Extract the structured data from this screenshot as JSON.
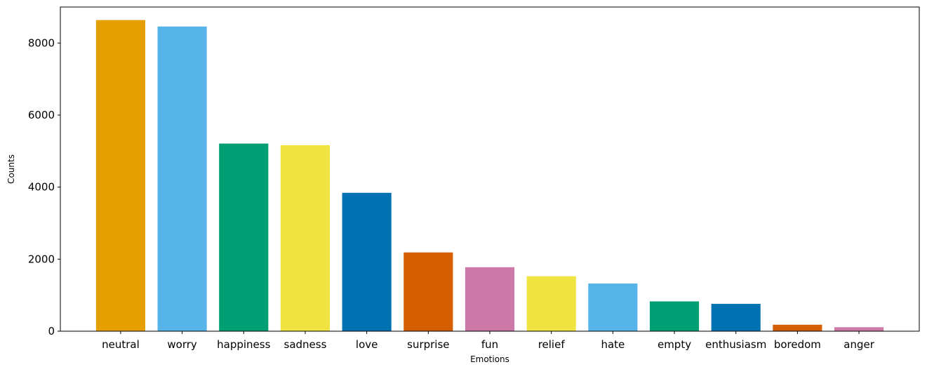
{
  "chart_data": {
    "type": "bar",
    "title": "",
    "xlabel": "Emotions",
    "ylabel": "Counts",
    "ylim": [
      0,
      9000
    ],
    "yticks": [
      0,
      2000,
      4000,
      6000,
      8000
    ],
    "grid": false,
    "legend": "none",
    "categories": [
      "neutral",
      "worry",
      "happiness",
      "sadness",
      "love",
      "surprise",
      "fun",
      "relief",
      "hate",
      "empty",
      "enthusiasm",
      "boredom",
      "anger"
    ],
    "values": [
      8638,
      8459,
      5209,
      5165,
      3842,
      2187,
      1776,
      1526,
      1323,
      827,
      759,
      179,
      110
    ],
    "colors": [
      "#E69F00",
      "#56B4E9",
      "#009E73",
      "#F0E442",
      "#0072B2",
      "#D55E00",
      "#CC79A7",
      "#F0E442",
      "#56B4E9",
      "#009E73",
      "#0072B2",
      "#D55E00",
      "#CC79A7"
    ]
  }
}
